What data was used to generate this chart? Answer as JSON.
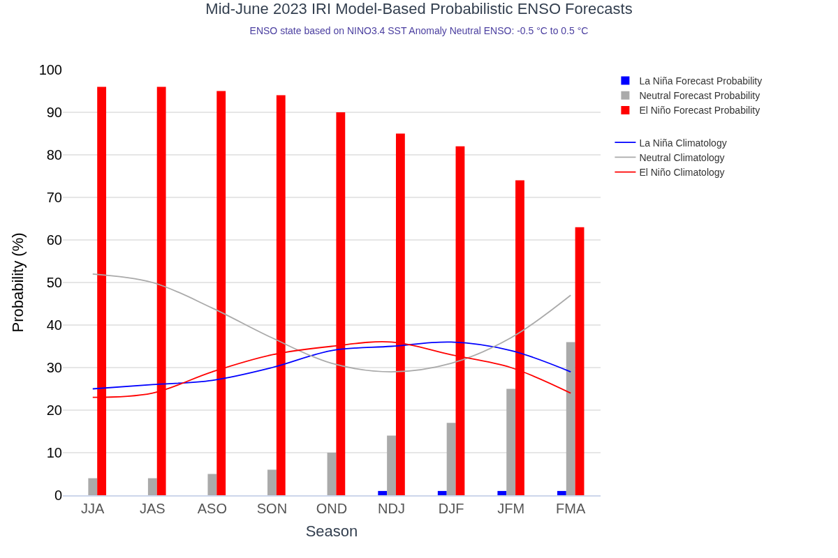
{
  "chart_data": {
    "type": "bar",
    "title": "Mid-June 2023 IRI Model-Based Probabilistic ENSO Forecasts",
    "subtitle": "ENSO state based on NINO3.4 SST Anomaly Neutral ENSO: -0.5 °C to 0.5 °C",
    "xlabel": "Season",
    "ylabel": "Probability (%)",
    "categories": [
      "JJA",
      "JAS",
      "ASO",
      "SON",
      "OND",
      "NDJ",
      "DJF",
      "JFM",
      "FMA"
    ],
    "series": [
      {
        "name": "La Niña Forecast Probability",
        "color": "#0000ff",
        "values": [
          0,
          0,
          0,
          0,
          0,
          1,
          1,
          1,
          1
        ]
      },
      {
        "name": "Neutral Forecast Probability",
        "color": "#aaaaaa",
        "values": [
          4,
          4,
          5,
          6,
          10,
          14,
          17,
          25,
          36
        ]
      },
      {
        "name": "El Niño Forecast Probability",
        "color": "#ff0000",
        "values": [
          96,
          96,
          95,
          94,
          90,
          85,
          82,
          74,
          63
        ]
      },
      {
        "name": "La Niña Climatology",
        "type": "line",
        "color": "#0000ff",
        "values": [
          25,
          26,
          27,
          30,
          34,
          35,
          36,
          34,
          29
        ]
      },
      {
        "name": "Neutral Climatology",
        "type": "line",
        "color": "#aaaaaa",
        "values": [
          52,
          50,
          44,
          37,
          31,
          29,
          31,
          37,
          47
        ]
      },
      {
        "name": "El Niño Climatology",
        "type": "line",
        "color": "#ff0000",
        "values": [
          23,
          24,
          29,
          33,
          35,
          36,
          33,
          30,
          24
        ]
      }
    ],
    "ylim": [
      0,
      100
    ],
    "yticks": [
      0,
      10,
      20,
      30,
      40,
      50,
      60,
      70,
      80,
      90,
      100
    ],
    "grid": "y",
    "legend": "top right"
  }
}
